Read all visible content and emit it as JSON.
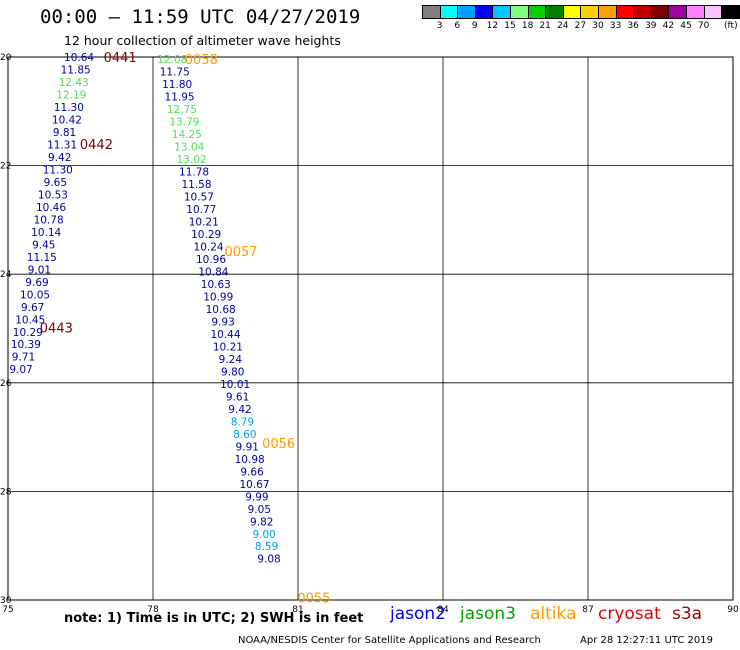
{
  "header": {
    "title": "00:00 – 11:59 UTC 04/27/2019",
    "subtitle": "12 hour collection of altimeter wave heights"
  },
  "color_scale": {
    "unit_label": "(ft)",
    "swatches": [
      {
        "color": "#808080",
        "label": ""
      },
      {
        "color": "#00ffff",
        "label": "3"
      },
      {
        "color": "#00a0ff",
        "label": "6"
      },
      {
        "color": "#0000ff",
        "label": "9"
      },
      {
        "color": "#00c8ff",
        "label": "12"
      },
      {
        "color": "#80ff80",
        "label": "15"
      },
      {
        "color": "#00d000",
        "label": "18"
      },
      {
        "color": "#008000",
        "label": "21"
      },
      {
        "color": "#ffff00",
        "label": "24"
      },
      {
        "color": "#ffd000",
        "label": "27"
      },
      {
        "color": "#ffa000",
        "label": "30"
      },
      {
        "color": "#ff0000",
        "label": "33"
      },
      {
        "color": "#c00000",
        "label": "36"
      },
      {
        "color": "#800000",
        "label": "39"
      },
      {
        "color": "#a000a0",
        "label": "42"
      },
      {
        "color": "#ff80ff",
        "label": "45"
      },
      {
        "color": "#ffc0ff",
        "label": "70"
      },
      {
        "color": "#000000",
        "label": ""
      }
    ]
  },
  "legend": {
    "items": [
      {
        "name": "jason2",
        "color": "#0000ee"
      },
      {
        "name": "jason3",
        "color": "#00a000"
      },
      {
        "name": "altika",
        "color": "#ff9900"
      },
      {
        "name": "cryosat",
        "color": "#dd0000"
      },
      {
        "name": "s3a",
        "color": "#990000"
      }
    ]
  },
  "footer": {
    "note": "note: 1) Time is in UTC; 2) SWH is in feet",
    "credit": "NOAA/NESDIS Center for Satellite Applications and Research",
    "timestamp": "Apr 28 12:27:11 UTC 2019"
  },
  "chart_data": {
    "type": "scatter",
    "xlim": [
      75,
      90
    ],
    "ylim": [
      20,
      30
    ],
    "x_ticks": [
      "75",
      "78",
      "81",
      "84",
      "87",
      "90"
    ],
    "y_ticks": [
      "20",
      "22",
      "24",
      "26",
      "28",
      "30"
    ],
    "grid": true,
    "tracks": [
      {
        "satellite": "s3a",
        "color": "#800000",
        "labels": [
          {
            "text": "0441",
            "x": 77.32,
            "y": 20.0
          },
          {
            "text": "0442",
            "x": 76.83,
            "y": 21.6
          },
          {
            "text": "0443",
            "x": 76.0,
            "y": 24.98
          }
        ],
        "points": [
          {
            "value": "10.64",
            "x": 76.47,
            "y": 20.0,
            "color": "#0000a0"
          },
          {
            "value": "11.85",
            "x": 76.4,
            "y": 20.23,
            "color": "#0000a0"
          },
          {
            "value": "12.43",
            "x": 76.36,
            "y": 20.46,
            "color": "#50e050"
          },
          {
            "value": "12.19",
            "x": 76.31,
            "y": 20.69,
            "color": "#50e050"
          },
          {
            "value": "11.30",
            "x": 76.26,
            "y": 20.92,
            "color": "#0000a0"
          },
          {
            "value": "10.42",
            "x": 76.22,
            "y": 21.15,
            "color": "#0000a0"
          },
          {
            "value": "9.81",
            "x": 76.17,
            "y": 21.38,
            "color": "#0000a0"
          },
          {
            "value": "11.31",
            "x": 76.12,
            "y": 21.61,
            "color": "#0000a0"
          },
          {
            "value": "9.42",
            "x": 76.07,
            "y": 21.84,
            "color": "#0000a0"
          },
          {
            "value": "11.30",
            "x": 76.03,
            "y": 22.07,
            "color": "#0000a0"
          },
          {
            "value": "9.65",
            "x": 75.98,
            "y": 22.3,
            "color": "#0000a0"
          },
          {
            "value": "10.53",
            "x": 75.93,
            "y": 22.53,
            "color": "#0000a0"
          },
          {
            "value": "10.46",
            "x": 75.89,
            "y": 22.76,
            "color": "#0000a0"
          },
          {
            "value": "10.78",
            "x": 75.84,
            "y": 22.99,
            "color": "#0000a0"
          },
          {
            "value": "10.14",
            "x": 75.79,
            "y": 23.22,
            "color": "#0000a0"
          },
          {
            "value": "9.45",
            "x": 75.74,
            "y": 23.45,
            "color": "#0000a0"
          },
          {
            "value": "11.15",
            "x": 75.7,
            "y": 23.68,
            "color": "#0000a0"
          },
          {
            "value": "9.01",
            "x": 75.65,
            "y": 23.91,
            "color": "#0000a0"
          },
          {
            "value": "9.69",
            "x": 75.6,
            "y": 24.14,
            "color": "#0000a0"
          },
          {
            "value": "10.05",
            "x": 75.56,
            "y": 24.37,
            "color": "#0000a0"
          },
          {
            "value": "9.67",
            "x": 75.51,
            "y": 24.6,
            "color": "#0000a0"
          },
          {
            "value": "10.45",
            "x": 75.46,
            "y": 24.83,
            "color": "#0000a0"
          },
          {
            "value": "10.29",
            "x": 75.41,
            "y": 25.06,
            "color": "#0000a0"
          },
          {
            "value": "10.39",
            "x": 75.37,
            "y": 25.29,
            "color": "#0000a0"
          },
          {
            "value": "9.71",
            "x": 75.32,
            "y": 25.52,
            "color": "#0000a0"
          },
          {
            "value": "9.07",
            "x": 75.27,
            "y": 25.75,
            "color": "#0000a0"
          }
        ]
      },
      {
        "satellite": "altika",
        "color": "#ff9900",
        "labels": [
          {
            "text": "0058",
            "x": 79.0,
            "y": 20.04
          },
          {
            "text": "0057",
            "x": 79.82,
            "y": 23.57
          },
          {
            "text": "0056",
            "x": 80.6,
            "y": 27.11
          },
          {
            "text": "0055",
            "x": 81.33,
            "y": 29.95
          }
        ],
        "points": [
          {
            "value": "12.08",
            "x": 78.4,
            "y": 20.04,
            "color": "#50e050"
          },
          {
            "value": "11.75",
            "x": 78.45,
            "y": 20.27,
            "color": "#0000a0"
          },
          {
            "value": "11.80",
            "x": 78.5,
            "y": 20.5,
            "color": "#0000a0"
          },
          {
            "value": "11.95",
            "x": 78.55,
            "y": 20.73,
            "color": "#0000a0"
          },
          {
            "value": "12.75",
            "x": 78.6,
            "y": 20.96,
            "color": "#50e050"
          },
          {
            "value": "13.79",
            "x": 78.65,
            "y": 21.19,
            "color": "#50e050"
          },
          {
            "value": "14.25",
            "x": 78.7,
            "y": 21.42,
            "color": "#50e050"
          },
          {
            "value": "13.04",
            "x": 78.75,
            "y": 21.65,
            "color": "#50e050"
          },
          {
            "value": "13.02",
            "x": 78.8,
            "y": 21.88,
            "color": "#50e050"
          },
          {
            "value": "11.78",
            "x": 78.85,
            "y": 22.11,
            "color": "#0000a0"
          },
          {
            "value": "11.58",
            "x": 78.9,
            "y": 22.34,
            "color": "#0000a0"
          },
          {
            "value": "10.57",
            "x": 78.95,
            "y": 22.57,
            "color": "#0000a0"
          },
          {
            "value": "10.77",
            "x": 79.0,
            "y": 22.8,
            "color": "#0000a0"
          },
          {
            "value": "10.21",
            "x": 79.05,
            "y": 23.03,
            "color": "#0000a0"
          },
          {
            "value": "10.29",
            "x": 79.1,
            "y": 23.26,
            "color": "#0000a0"
          },
          {
            "value": "10.24",
            "x": 79.15,
            "y": 23.49,
            "color": "#0000a0"
          },
          {
            "value": "10.96",
            "x": 79.2,
            "y": 23.72,
            "color": "#0000a0"
          },
          {
            "value": "10.84",
            "x": 79.25,
            "y": 23.95,
            "color": "#0000a0"
          },
          {
            "value": "10.63",
            "x": 79.3,
            "y": 24.18,
            "color": "#0000a0"
          },
          {
            "value": "10.99",
            "x": 79.35,
            "y": 24.41,
            "color": "#0000a0"
          },
          {
            "value": "10.68",
            "x": 79.4,
            "y": 24.64,
            "color": "#0000a0"
          },
          {
            "value": "9.93",
            "x": 79.45,
            "y": 24.87,
            "color": "#0000a0"
          },
          {
            "value": "10.44",
            "x": 79.5,
            "y": 25.1,
            "color": "#0000a0"
          },
          {
            "value": "10.21",
            "x": 79.55,
            "y": 25.33,
            "color": "#0000a0"
          },
          {
            "value": "9.24",
            "x": 79.6,
            "y": 25.56,
            "color": "#0000a0"
          },
          {
            "value": "9.80",
            "x": 79.65,
            "y": 25.79,
            "color": "#0000a0"
          },
          {
            "value": "10.01",
            "x": 79.7,
            "y": 26.02,
            "color": "#0000a0"
          },
          {
            "value": "9.61",
            "x": 79.75,
            "y": 26.25,
            "color": "#0000a0"
          },
          {
            "value": "9.42",
            "x": 79.8,
            "y": 26.48,
            "color": "#0000a0"
          },
          {
            "value": "8.79",
            "x": 79.85,
            "y": 26.71,
            "color": "#00a0e0"
          },
          {
            "value": "8.60",
            "x": 79.9,
            "y": 26.94,
            "color": "#00a0e0"
          },
          {
            "value": "9.91",
            "x": 79.95,
            "y": 27.17,
            "color": "#0000a0"
          },
          {
            "value": "10.98",
            "x": 80.0,
            "y": 27.4,
            "color": "#0000a0"
          },
          {
            "value": "9.66",
            "x": 80.05,
            "y": 27.63,
            "color": "#0000a0"
          },
          {
            "value": "10.67",
            "x": 80.1,
            "y": 27.86,
            "color": "#0000a0"
          },
          {
            "value": "9.99",
            "x": 80.15,
            "y": 28.09,
            "color": "#0000a0"
          },
          {
            "value": "9.05",
            "x": 80.2,
            "y": 28.32,
            "color": "#0000a0"
          },
          {
            "value": "9.82",
            "x": 80.25,
            "y": 28.55,
            "color": "#0000a0"
          },
          {
            "value": "9.00",
            "x": 80.3,
            "y": 28.78,
            "color": "#00a0e0"
          },
          {
            "value": "8.59",
            "x": 80.35,
            "y": 29.01,
            "color": "#00a0e0"
          },
          {
            "value": "9.08",
            "x": 80.4,
            "y": 29.24,
            "color": "#0000a0"
          }
        ]
      }
    ]
  }
}
